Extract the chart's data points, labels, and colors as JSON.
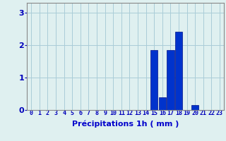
{
  "hours": [
    0,
    1,
    2,
    3,
    4,
    5,
    6,
    7,
    8,
    9,
    10,
    11,
    12,
    13,
    14,
    15,
    16,
    17,
    18,
    19,
    20,
    21,
    22,
    23
  ],
  "values": [
    0,
    0,
    0,
    0,
    0,
    0,
    0,
    0,
    0,
    0,
    0,
    0,
    0,
    0,
    0,
    1.85,
    0.4,
    1.85,
    2.4,
    0,
    0.15,
    0,
    0,
    0
  ],
  "bar_color": "#0033cc",
  "bar_edge_color": "#001188",
  "background_color": "#dff0f0",
  "grid_color": "#aaccd8",
  "xlabel": "Précipitations 1h ( mm )",
  "xlabel_color": "#0000cc",
  "xlabel_fontsize": 8,
  "tick_color": "#0000bb",
  "tick_fontsize": 6,
  "ytick_fontsize": 8,
  "yticks": [
    0,
    1,
    2,
    3
  ],
  "ylim": [
    0,
    3.3
  ],
  "xlim": [
    -0.5,
    23.5
  ]
}
